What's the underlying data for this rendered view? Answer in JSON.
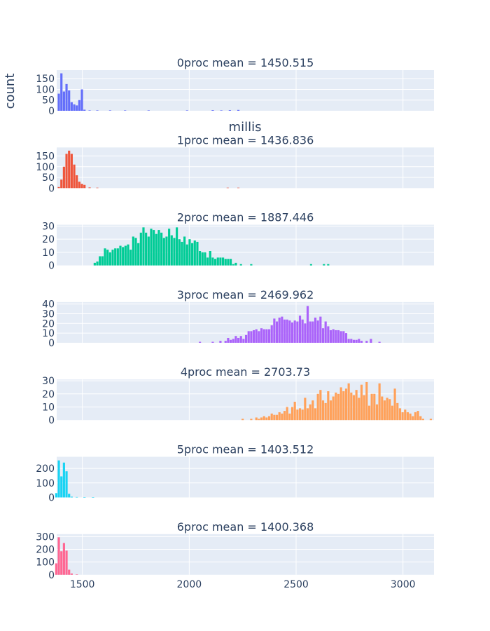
{
  "chart_data": {
    "type": "bar",
    "chart_kind": "histogram-facets",
    "ylabel": "count",
    "xlabel": "millis",
    "x_ticks": [
      1500,
      2000,
      2500,
      3000
    ],
    "x_range": [
      1380,
      3145
    ],
    "bin_width": 12,
    "grid": true,
    "panels": [
      {
        "title": "0proc mean = 1450.515",
        "color": "#636efa",
        "y_ticks": [
          0,
          50,
          100,
          150
        ],
        "y_range": [
          0,
          190
        ],
        "x": [
          1390,
          1402,
          1414,
          1426,
          1438,
          1450,
          1462,
          1474,
          1486,
          1498,
          1510,
          1534,
          1570,
          1630,
          1700,
          1810,
          1990,
          2110,
          2150,
          2190,
          2230
        ],
        "values": [
          80,
          175,
          90,
          125,
          95,
          40,
          30,
          25,
          50,
          100,
          5,
          2,
          2,
          2,
          2,
          2,
          2,
          3,
          2,
          3,
          4
        ]
      },
      {
        "title": "1proc mean = 1436.836",
        "color": "#ef553b",
        "y_ticks": [
          0,
          50,
          100,
          150
        ],
        "y_range": [
          0,
          190
        ],
        "x": [
          1390,
          1402,
          1414,
          1426,
          1438,
          1450,
          1462,
          1474,
          1486,
          1498,
          1510,
          1534,
          1570,
          2180,
          2230
        ],
        "values": [
          5,
          40,
          100,
          160,
          175,
          160,
          110,
          60,
          30,
          20,
          15,
          3,
          2,
          2,
          2
        ]
      },
      {
        "title": "2proc mean = 1887.446",
        "color": "#00cc96",
        "y_ticks": [
          0,
          10,
          20,
          30
        ],
        "y_range": [
          0,
          31
        ],
        "x": [
          1558,
          1570,
          1582,
          1594,
          1606,
          1618,
          1630,
          1642,
          1654,
          1666,
          1678,
          1690,
          1702,
          1714,
          1726,
          1738,
          1750,
          1762,
          1774,
          1786,
          1798,
          1810,
          1822,
          1834,
          1846,
          1858,
          1870,
          1882,
          1894,
          1906,
          1918,
          1930,
          1942,
          1954,
          1966,
          1978,
          1990,
          2002,
          2014,
          2026,
          2038,
          2050,
          2062,
          2074,
          2086,
          2098,
          2110,
          2122,
          2134,
          2146,
          2158,
          2170,
          2182,
          2194,
          2206,
          2218,
          2242,
          2290,
          2570,
          2630,
          2650
        ],
        "values": [
          2,
          3,
          7,
          7,
          13,
          12,
          10,
          12,
          13,
          13,
          15,
          14,
          15,
          16,
          12,
          22,
          21,
          17,
          25,
          29,
          25,
          22,
          28,
          27,
          24,
          27,
          25,
          21,
          22,
          28,
          23,
          21,
          29,
          20,
          18,
          22,
          16,
          20,
          17,
          19,
          18,
          11,
          10,
          10,
          6,
          11,
          6,
          5,
          6,
          6,
          6,
          5,
          5,
          5,
          1,
          2,
          1,
          1,
          1,
          1,
          1
        ]
      },
      {
        "title": "3proc mean = 2469.962",
        "color": "#ab63fa",
        "y_ticks": [
          0,
          10,
          20,
          30,
          40
        ],
        "y_range": [
          0,
          42
        ],
        "x": [
          2050,
          2110,
          2146,
          2170,
          2182,
          2194,
          2206,
          2218,
          2230,
          2242,
          2254,
          2266,
          2278,
          2290,
          2302,
          2314,
          2326,
          2338,
          2350,
          2362,
          2374,
          2386,
          2398,
          2410,
          2422,
          2434,
          2446,
          2458,
          2470,
          2482,
          2494,
          2506,
          2518,
          2530,
          2542,
          2554,
          2566,
          2578,
          2590,
          2602,
          2614,
          2626,
          2638,
          2650,
          2662,
          2674,
          2686,
          2698,
          2710,
          2722,
          2734,
          2746,
          2758,
          2770,
          2782,
          2794,
          2806,
          2830,
          2850,
          2890
        ],
        "values": [
          1,
          1,
          2,
          2,
          5,
          3,
          4,
          7,
          5,
          7,
          4,
          8,
          12,
          12,
          13,
          14,
          12,
          15,
          14,
          14,
          14,
          18,
          25,
          22,
          26,
          27,
          24,
          24,
          23,
          21,
          23,
          22,
          28,
          24,
          20,
          38,
          22,
          22,
          26,
          23,
          27,
          15,
          22,
          17,
          13,
          14,
          13,
          13,
          12,
          12,
          10,
          4,
          4,
          3,
          3,
          4,
          2,
          2,
          4,
          1
        ]
      },
      {
        "title": "4proc mean = 2703.73",
        "color": "#ffa15a",
        "y_ticks": [
          0,
          10,
          20,
          30
        ],
        "y_range": [
          0,
          31
        ],
        "x": [
          2250,
          2290,
          2314,
          2326,
          2338,
          2350,
          2362,
          2374,
          2386,
          2398,
          2410,
          2422,
          2434,
          2446,
          2458,
          2470,
          2482,
          2494,
          2506,
          2518,
          2530,
          2542,
          2554,
          2566,
          2578,
          2590,
          2602,
          2614,
          2626,
          2638,
          2650,
          2662,
          2674,
          2686,
          2698,
          2710,
          2722,
          2734,
          2746,
          2758,
          2770,
          2782,
          2794,
          2806,
          2818,
          2830,
          2842,
          2854,
          2866,
          2878,
          2890,
          2902,
          2914,
          2926,
          2938,
          2950,
          2962,
          2974,
          2986,
          2998,
          3010,
          3022,
          3034,
          3046,
          3058,
          3070,
          3082,
          3094,
          3130
        ],
        "values": [
          1,
          1,
          2,
          1,
          2,
          3,
          2,
          3,
          5,
          4,
          4,
          6,
          5,
          7,
          10,
          5,
          10,
          14,
          8,
          9,
          8,
          17,
          9,
          12,
          15,
          9,
          20,
          23,
          15,
          13,
          22,
          15,
          18,
          21,
          20,
          25,
          22,
          24,
          28,
          21,
          19,
          23,
          17,
          27,
          19,
          29,
          11,
          20,
          20,
          12,
          28,
          18,
          15,
          17,
          16,
          11,
          24,
          13,
          9,
          6,
          8,
          6,
          5,
          3,
          6,
          7,
          3,
          1,
          1
        ]
      },
      {
        "title": "5proc mean = 1403.512",
        "color": "#19d3f3",
        "y_ticks": [
          0,
          100,
          200
        ],
        "y_range": [
          0,
          280
        ],
        "x": [
          1378,
          1390,
          1402,
          1414,
          1426,
          1438,
          1450,
          1474,
          1510,
          1550
        ],
        "values": [
          30,
          255,
          145,
          240,
          180,
          25,
          5,
          3,
          2,
          2
        ]
      },
      {
        "title": "6proc mean = 1400.368",
        "color": "#ff6692",
        "y_ticks": [
          0,
          100,
          200,
          300
        ],
        "y_range": [
          0,
          320
        ],
        "x": [
          1378,
          1390,
          1402,
          1414,
          1426,
          1438,
          1450,
          1474
        ],
        "values": [
          90,
          295,
          185,
          250,
          190,
          40,
          10,
          3
        ]
      }
    ]
  }
}
